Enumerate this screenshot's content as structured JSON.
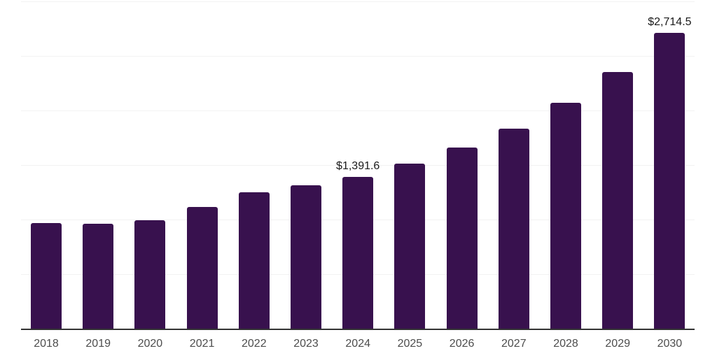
{
  "chart_data": {
    "type": "bar",
    "title": "",
    "xlabel": "",
    "ylabel": "",
    "categories": [
      "2018",
      "2019",
      "2020",
      "2021",
      "2022",
      "2023",
      "2024",
      "2025",
      "2026",
      "2027",
      "2028",
      "2029",
      "2030"
    ],
    "values": [
      965,
      960,
      995,
      1117,
      1251,
      1316,
      1391.6,
      1515,
      1663,
      1833,
      2068,
      2355,
      2714.5
    ],
    "data_labels": [
      {
        "index": 6,
        "category": "2024",
        "text": "$1,391.6"
      },
      {
        "index": 12,
        "category": "2030",
        "text": "$2,714.5"
      }
    ],
    "ylim": [
      0,
      3000
    ],
    "gridline_step": 500,
    "grid": true,
    "legend_position": "none",
    "colors": {
      "bar": "#38114E",
      "axis": "#333333",
      "gridline": "#f2f2f2",
      "data_label": "#1a1a1a",
      "tick_label": "#4d4d4d",
      "background": "#ffffff"
    }
  }
}
